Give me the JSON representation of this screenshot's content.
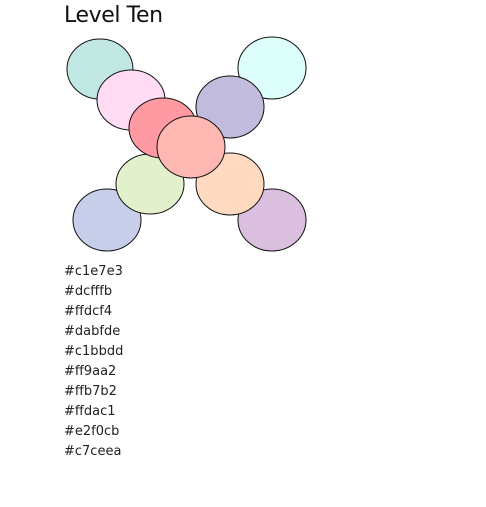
{
  "title": "Level Ten",
  "circles": [
    {
      "name": "circle-top-left",
      "color": "#c1e7e3"
    },
    {
      "name": "circle-top-right",
      "color": "#dcfffb"
    },
    {
      "name": "circle-upper-left",
      "color": "#ffdcf4"
    },
    {
      "name": "circle-bottom-right",
      "color": "#dabfde"
    },
    {
      "name": "circle-upper-right",
      "color": "#c1bbdd"
    },
    {
      "name": "circle-center-left",
      "color": "#ff9aa2"
    },
    {
      "name": "circle-center-right",
      "color": "#ffb7b2"
    },
    {
      "name": "circle-lower-right",
      "color": "#ffdac1"
    },
    {
      "name": "circle-lower-left",
      "color": "#e2f0cb"
    },
    {
      "name": "circle-bottom-left",
      "color": "#c7ceea"
    }
  ],
  "palette": [
    "#c1e7e3",
    "#dcfffb",
    "#ffdcf4",
    "#dabfde",
    "#c1bbdd",
    "#ff9aa2",
    "#ffb7b2",
    "#ffdac1",
    "#e2f0cb",
    "#c7ceea"
  ]
}
